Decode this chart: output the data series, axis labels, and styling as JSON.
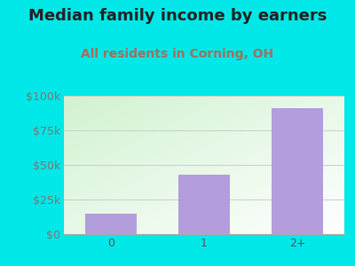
{
  "title": "Median family income by earners",
  "subtitle": "All residents in Corning, OH",
  "categories": [
    "0",
    "1",
    "2+"
  ],
  "values": [
    15000,
    43000,
    91000
  ],
  "bar_color": "#b39ddb",
  "title_color": "#222222",
  "subtitle_color": "#a07060",
  "outer_bg_color": "#00e8e8",
  "plot_bg_from": [
    0.82,
    0.95,
    0.82
  ],
  "plot_bg_to": [
    1.0,
    1.0,
    1.0
  ],
  "ylim": [
    0,
    100000
  ],
  "yticks": [
    0,
    25000,
    50000,
    75000,
    100000
  ],
  "ytick_labels": [
    "$0",
    "$25k",
    "$50k",
    "$75k",
    "$100k"
  ],
  "title_fontsize": 13,
  "subtitle_fontsize": 10,
  "tick_fontsize": 9,
  "bar_width": 0.55,
  "grid_color": "#cccccc"
}
